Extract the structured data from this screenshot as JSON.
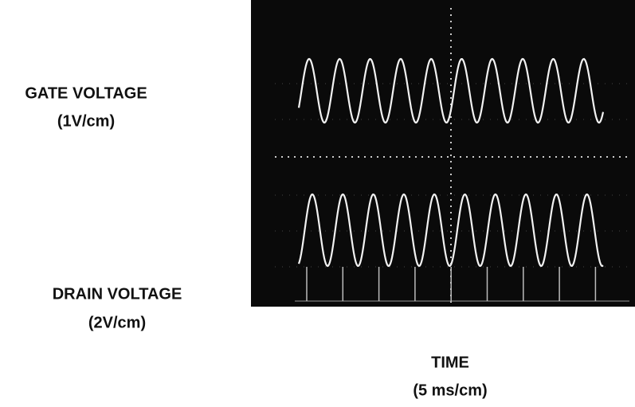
{
  "gate_voltage": {
    "label": "GATE VOLTAGE",
    "scale": "(1V/cm)"
  },
  "drain_voltage": {
    "label": "DRAIN VOLTAGE",
    "scale": "(2V/cm)"
  },
  "time": {
    "label": "TIME",
    "scale": "(5 ms/cm)"
  }
}
